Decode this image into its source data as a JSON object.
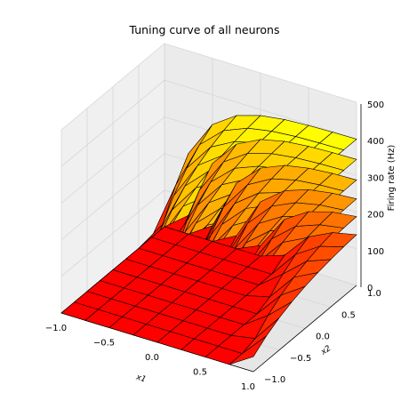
{
  "chart_data": {
    "type": "surface",
    "title": "Tuning curve of all neurons",
    "xlabel": "x1",
    "ylabel": "x2",
    "zlabel": "Firing rate (Hz)",
    "x_ticks": [
      "−1.0",
      "−0.5",
      "0.0",
      "0.5",
      "1.0"
    ],
    "y_ticks": [
      "−1.0",
      "−0.5",
      "0.0",
      "0.5",
      "1.0"
    ],
    "z_ticks": [
      "0",
      "100",
      "200",
      "300",
      "400",
      "500"
    ],
    "xlim": [
      -1,
      1
    ],
    "ylim": [
      -1,
      1
    ],
    "zlim": [
      0,
      500
    ],
    "grid": true,
    "colormap": "autumn",
    "colors": {
      "low": "#ff0000",
      "high": "#ffff00",
      "edge": "#000000"
    },
    "series": [
      {
        "threshold": -0.65,
        "max_rate": 400
      },
      {
        "threshold": -0.45,
        "max_rate": 345
      },
      {
        "threshold": -0.2,
        "max_rate": 290
      },
      {
        "threshold": 0.05,
        "max_rate": 240
      },
      {
        "threshold": 0.3,
        "max_rate": 195
      },
      {
        "threshold": 0.55,
        "max_rate": 150
      }
    ]
  }
}
